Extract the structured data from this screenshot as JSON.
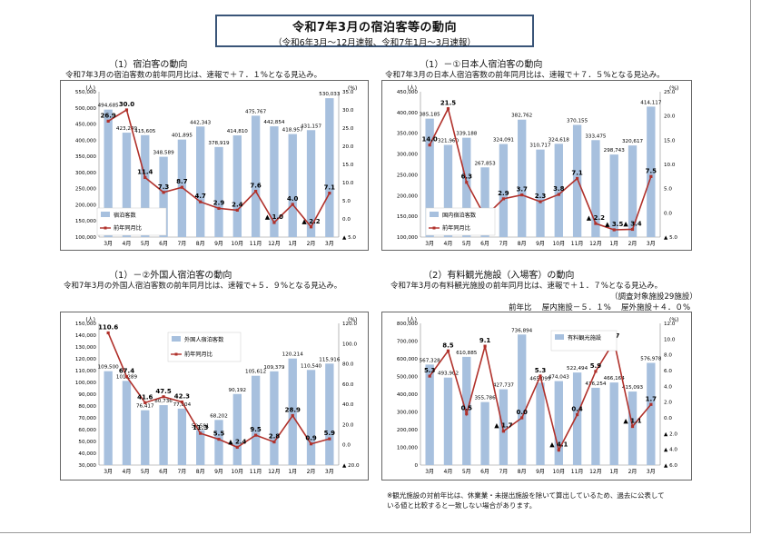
{
  "header": {
    "title": "令和7年3月の宿泊客等の動向",
    "subtitle": "（令和6年3月～12月速報、令和7年1月～3月速報）"
  },
  "panels": [
    {
      "title": "（1）宿泊客の動向",
      "desc": "令和7年3月の宿泊客数の前年同月比は、速報で＋７．１%となる見込み。"
    },
    {
      "title": "（1）－①日本人宿泊客の動向",
      "desc": "令和7年3月の日本人宿泊客数の前年同月比は、速報で＋７．５%となる見込み。"
    },
    {
      "title": "（1）－②外国人宿泊客の動向",
      "desc": "令和7年3月の外国人宿泊客数の前年同月比は、速報で+５．９%となる見込み。"
    },
    {
      "title": "（2）有料観光施設（入場客）の動向",
      "desc": "令和7年3月の有料観光施設の前年同月比は、速報で＋１．７%となる見込み。",
      "extra1": "（調査対象施設29施設）",
      "extra2": "前年比　 屋内施設－５．１%　 屋外施設＋４．０%"
    }
  ],
  "note": {
    "line1": "※観光施設の対前年比は、休業業・未提出施設を除いて算出しているため、過去に公表して",
    "line2": "いる値と比較すると一致しない場合があります。"
  },
  "chart_data": [
    {
      "type": "bar",
      "categories": [
        "3月",
        "4月",
        "5月",
        "6月",
        "7月",
        "8月",
        "9月",
        "10月",
        "11月",
        "12月",
        "1月",
        "2月",
        "3月"
      ],
      "y_axis_label": "(人)",
      "y2_axis_label": "(%)",
      "ylim": [
        100000,
        550000
      ],
      "y_ticks": [
        100000,
        150000,
        200000,
        250000,
        300000,
        350000,
        400000,
        450000,
        500000,
        550000
      ],
      "y_tick_labels": [
        "100,000",
        "150,000",
        "200,000",
        "250,000",
        "300,000",
        "350,000",
        "400,000",
        "450,000",
        "500,000",
        "550,000"
      ],
      "y2lim": [
        -5,
        35
      ],
      "y2_ticks": [
        -5,
        0,
        5,
        10,
        15,
        20,
        25,
        30,
        35
      ],
      "y2_tick_labels": [
        "▲ 5.0",
        "0.0",
        "5.0",
        "10.0",
        "15.0",
        "20.0",
        "25.0",
        "30.0",
        "35.0"
      ],
      "series": [
        {
          "name": "宿泊客数",
          "type": "bar",
          "values": [
            494685,
            423249,
            415605,
            348589,
            401895,
            442343,
            378919,
            414810,
            475767,
            442854,
            418957,
            431157,
            530033
          ],
          "labels": [
            "494,685",
            "423,249",
            "415,605",
            "348,589",
            "401,895",
            "442,343",
            "378,919",
            "414,810",
            "475,767",
            "442,854",
            "418,957",
            "431,157",
            "530,033"
          ]
        },
        {
          "name": "前年同月比",
          "type": "line",
          "values": [
            26.9,
            30.0,
            11.4,
            7.3,
            8.7,
            4.7,
            2.9,
            2.4,
            7.6,
            -1.0,
            4.0,
            -2.2,
            7.1
          ],
          "labels": [
            "26.9",
            "30.0",
            "11.4",
            "7.3",
            "8.7",
            "4.7",
            "2.9",
            "2.4",
            "7.6",
            "▲ 1.0",
            "4.0",
            "▲ 2.2",
            "7.1"
          ]
        }
      ],
      "legend": "bottom-left"
    },
    {
      "type": "bar",
      "categories": [
        "3月",
        "4月",
        "5月",
        "6月",
        "7月",
        "8月",
        "9月",
        "10月",
        "11月",
        "12月",
        "1月",
        "2月",
        "3月"
      ],
      "y_axis_label": "(人)",
      "y2_axis_label": "(%)",
      "ylim": [
        100000,
        450000
      ],
      "y_ticks": [
        100000,
        150000,
        200000,
        250000,
        300000,
        350000,
        400000,
        450000
      ],
      "y_tick_labels": [
        "100,000",
        "150,000",
        "200,000",
        "250,000",
        "300,000",
        "350,000",
        "400,000",
        "450,000"
      ],
      "y2lim": [
        -5,
        25
      ],
      "y2_ticks": [
        -5,
        0,
        5,
        10,
        15,
        20,
        25
      ],
      "y2_tick_labels": [
        "▲ 5.0",
        "0.0",
        "5.0",
        "10.0",
        "15.0",
        "20.0",
        "25.0"
      ],
      "series": [
        {
          "name": "国内宿泊客数",
          "type": "bar",
          "values": [
            385185,
            321960,
            339188,
            267853,
            324091,
            382762,
            310717,
            324618,
            370155,
            333475,
            298743,
            320617,
            414117
          ],
          "labels": [
            "385,185",
            "321,960",
            "339,188",
            "267,853",
            "324,091",
            "382,762",
            "310,717",
            "324,618",
            "370,155",
            "333,475",
            "298,743",
            "320,617",
            "414,117"
          ]
        },
        {
          "name": "前年同月比",
          "type": "line",
          "values": [
            14.0,
            21.5,
            6.3,
            -0.8,
            2.9,
            3.7,
            2.3,
            3.8,
            7.1,
            -2.2,
            -3.5,
            -3.4,
            7.5
          ],
          "labels": [
            "14.0",
            "21.5",
            "6.3",
            "▲ 0.8",
            "2.9",
            "3.7",
            "2.3",
            "3.8",
            "7.1",
            "▲ 2.2",
            "▲ 3.5",
            "▲ 3.4",
            "7.5"
          ]
        }
      ],
      "legend": "bottom-left"
    },
    {
      "type": "bar",
      "categories": [
        "3月",
        "4月",
        "5月",
        "6月",
        "7月",
        "8月",
        "9月",
        "10月",
        "11月",
        "12月",
        "1月",
        "2月",
        "3月"
      ],
      "y_axis_label": "(人)",
      "y2_axis_label": "(%)",
      "ylim": [
        30000,
        150000
      ],
      "y_ticks": [
        30000,
        40000,
        50000,
        60000,
        70000,
        80000,
        90000,
        100000,
        110000,
        120000,
        130000,
        140000,
        150000
      ],
      "y_tick_labels": [
        "30,000",
        "40,000",
        "50,000",
        "60,000",
        "70,000",
        "80,000",
        "90,000",
        "100,000",
        "110,000",
        "120,000",
        "130,000",
        "140,000",
        "150,000"
      ],
      "y2lim": [
        -20,
        120
      ],
      "y2_ticks": [
        -20,
        0,
        20,
        40,
        60,
        80,
        100,
        120
      ],
      "y2_tick_labels": [
        "▲ 20.0",
        "0.0",
        "20.0",
        "40.0",
        "60.0",
        "80.0",
        "100.0",
        "120.0"
      ],
      "series": [
        {
          "name": "外国人宿泊客数",
          "type": "bar",
          "values": [
            109500,
            101289,
            76417,
            80736,
            77804,
            59581,
            68202,
            90192,
            105612,
            109379,
            120214,
            110540,
            115916
          ],
          "labels": [
            "109,500",
            "101,289",
            "76,417",
            "80,736",
            "77,804",
            "59,581",
            "68,202",
            "90,192",
            "105,612",
            "109,379",
            "120,214",
            "110,540",
            "115,916"
          ]
        },
        {
          "name": "前年同月比",
          "type": "line",
          "values": [
            110.6,
            67.4,
            41.6,
            47.5,
            42.3,
            11.3,
            5.5,
            -2.4,
            9.5,
            2.8,
            28.9,
            0.9,
            5.9
          ],
          "labels": [
            "110.6",
            "67.4",
            "41.6",
            "47.5",
            "42.3",
            "11.3",
            "5.5",
            "▲ 2.4",
            "9.5",
            "2.8",
            "28.9",
            "0.9",
            "5.9"
          ]
        }
      ],
      "legend": "top-left"
    },
    {
      "type": "bar",
      "categories": [
        "3月",
        "4月",
        "5月",
        "6月",
        "7月",
        "8月",
        "9月",
        "10月",
        "11月",
        "12月",
        "1月",
        "2月",
        "3月"
      ],
      "y_axis_label": "(人)",
      "y2_axis_label": "(%)",
      "ylim": [
        0,
        800000
      ],
      "y_ticks": [
        0,
        100000,
        200000,
        300000,
        400000,
        500000,
        600000,
        700000,
        800000
      ],
      "y_tick_labels": [
        "0",
        "100,000",
        "200,000",
        "300,000",
        "400,000",
        "500,000",
        "600,000",
        "700,000",
        "800,000"
      ],
      "y2lim": [
        -6,
        12
      ],
      "y2_ticks": [
        -6,
        -4,
        -2,
        0,
        2,
        4,
        6,
        8,
        10,
        12
      ],
      "y2_tick_labels": [
        "▲ 6.0",
        "▲ 4.0",
        "▲ 2.0",
        "0.0",
        "2.0",
        "4.0",
        "6.0",
        "8.0",
        "10.0",
        "12.0"
      ],
      "series": [
        {
          "name": "有料観光施設",
          "type": "bar",
          "values": [
            567328,
            493902,
            610885,
            355786,
            427737,
            736894,
            465099,
            474043,
            522494,
            436254,
            466164,
            415093,
            576978
          ],
          "labels": [
            "567,328",
            "493,902",
            "610,885",
            "355,786",
            "427,737",
            "736,894",
            "465,099",
            "474,043",
            "522,494",
            "436,254",
            "466,164",
            "415,093",
            "576,978"
          ]
        },
        {
          "name": "",
          "type": "line",
          "values": [
            5.3,
            8.5,
            0.5,
            9.1,
            -1.7,
            0.0,
            5.3,
            -4.1,
            0.4,
            5.9,
            9.7,
            -1.1,
            1.7
          ],
          "labels": [
            "5.3",
            "8.5",
            "0.5",
            "9.1",
            "▲ 1.7",
            "0.0",
            "5.3",
            "▲ 4.1",
            "0.4",
            "5.9",
            "9.7",
            "▲ 1.1",
            "1.7"
          ]
        }
      ],
      "legend": "top-right"
    }
  ]
}
